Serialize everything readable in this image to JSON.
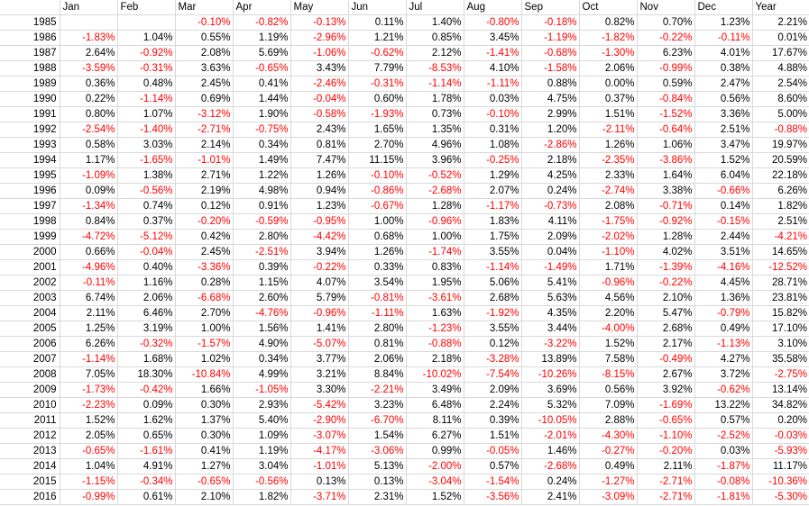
{
  "header": {
    "corner": "",
    "columns": [
      "Jan",
      "Feb",
      "Mar",
      "Apr",
      "May",
      "Jun",
      "Jul",
      "Aug",
      "Sep",
      "Oct",
      "Nov",
      "Dec",
      "Year"
    ]
  },
  "colors": {
    "negative": "#ff0000",
    "positive": "#000000",
    "gridline": "#d9d9d9"
  },
  "rows": [
    {
      "year": "1985",
      "cells": [
        "",
        "",
        "-0.10%",
        "-0.82%",
        "-0.13%",
        "0.11%",
        "1.40%",
        "-0.80%",
        "-0.18%",
        "0.82%",
        "0.70%",
        "1.23%",
        "2.21%"
      ]
    },
    {
      "year": "1986",
      "cells": [
        "-1.83%",
        "1.04%",
        "0.55%",
        "1.19%",
        "-2.96%",
        "1.21%",
        "0.85%",
        "3.45%",
        "-1.19%",
        "-1.82%",
        "-0.22%",
        "-0.11%",
        "0.01%"
      ]
    },
    {
      "year": "1987",
      "cells": [
        "2.64%",
        "-0.92%",
        "2.08%",
        "5.69%",
        "-1.06%",
        "-0.62%",
        "2.12%",
        "-1.41%",
        "-0.68%",
        "-1.30%",
        "6.23%",
        "4.01%",
        "17.67%"
      ]
    },
    {
      "year": "1988",
      "cells": [
        "-3.59%",
        "-0.31%",
        "3.63%",
        "-0.65%",
        "3.43%",
        "7.79%",
        "-8.53%",
        "4.10%",
        "-1.58%",
        "2.06%",
        "-0.99%",
        "0.38%",
        "4.88%"
      ]
    },
    {
      "year": "1989",
      "cells": [
        "0.36%",
        "0.48%",
        "2.45%",
        "0.41%",
        "-2.46%",
        "-0.31%",
        "-1.14%",
        "-1.11%",
        "0.88%",
        "0.00%",
        "0.59%",
        "2.47%",
        "2.54%"
      ]
    },
    {
      "year": "1990",
      "cells": [
        "0.22%",
        "-1.14%",
        "0.69%",
        "1.44%",
        "-0.04%",
        "0.60%",
        "1.78%",
        "0.03%",
        "4.75%",
        "0.37%",
        "-0.84%",
        "0.56%",
        "8.60%"
      ]
    },
    {
      "year": "1991",
      "cells": [
        "0.80%",
        "1.07%",
        "-3.12%",
        "1.90%",
        "-0.58%",
        "-1.93%",
        "0.73%",
        "-0.10%",
        "2.99%",
        "1.51%",
        "-1.52%",
        "3.36%",
        "5.00%"
      ]
    },
    {
      "year": "1992",
      "cells": [
        "-2.54%",
        "-1.40%",
        "-2.71%",
        "-0.75%",
        "2.43%",
        "1.65%",
        "1.35%",
        "0.31%",
        "1.20%",
        "-2.11%",
        "-0.64%",
        "2.51%",
        "-0.88%"
      ]
    },
    {
      "year": "1993",
      "cells": [
        "0.58%",
        "3.03%",
        "2.14%",
        "0.34%",
        "0.81%",
        "2.70%",
        "4.96%",
        "1.08%",
        "-2.86%",
        "1.26%",
        "1.06%",
        "3.47%",
        "19.97%"
      ]
    },
    {
      "year": "1994",
      "cells": [
        "1.17%",
        "-1.65%",
        "-1.01%",
        "1.49%",
        "7.47%",
        "11.15%",
        "3.96%",
        "-0.25%",
        "2.18%",
        "-2.35%",
        "-3.86%",
        "1.52%",
        "20.59%"
      ]
    },
    {
      "year": "1995",
      "cells": [
        "-1.09%",
        "1.38%",
        "2.71%",
        "1.22%",
        "1.26%",
        "-0.10%",
        "-0.52%",
        "1.29%",
        "4.25%",
        "2.33%",
        "1.64%",
        "6.04%",
        "22.18%"
      ]
    },
    {
      "year": "1996",
      "cells": [
        "0.09%",
        "-0.56%",
        "2.19%",
        "4.98%",
        "0.94%",
        "-0.86%",
        "-2.68%",
        "2.07%",
        "0.24%",
        "-2.74%",
        "3.38%",
        "-0.66%",
        "6.26%"
      ]
    },
    {
      "year": "1997",
      "cells": [
        "-1.34%",
        "0.74%",
        "0.12%",
        "0.91%",
        "1.23%",
        "-0.67%",
        "1.28%",
        "-1.17%",
        "-0.73%",
        "2.08%",
        "-0.71%",
        "0.14%",
        "1.82%"
      ]
    },
    {
      "year": "1998",
      "cells": [
        "0.84%",
        "0.37%",
        "-0.20%",
        "-0.59%",
        "-0.95%",
        "1.00%",
        "-0.96%",
        "1.83%",
        "4.11%",
        "-1.75%",
        "-0.92%",
        "-0.15%",
        "2.51%"
      ]
    },
    {
      "year": "1999",
      "cells": [
        "-4.72%",
        "-5.12%",
        "0.42%",
        "2.80%",
        "-4.42%",
        "0.68%",
        "1.00%",
        "1.75%",
        "2.09%",
        "-2.02%",
        "1.28%",
        "2.44%",
        "-4.21%"
      ]
    },
    {
      "year": "2000",
      "cells": [
        "0.66%",
        "-0.04%",
        "2.45%",
        "-2.51%",
        "3.94%",
        "1.26%",
        "-1.74%",
        "3.55%",
        "0.04%",
        "-1.10%",
        "4.02%",
        "3.51%",
        "14.65%"
      ]
    },
    {
      "year": "2001",
      "cells": [
        "-4.96%",
        "0.40%",
        "-3.36%",
        "0.39%",
        "-0.22%",
        "0.33%",
        "0.83%",
        "-1.14%",
        "-1.49%",
        "1.71%",
        "-1.39%",
        "-4.16%",
        "-12.52%"
      ]
    },
    {
      "year": "2002",
      "cells": [
        "-0.11%",
        "1.16%",
        "0.28%",
        "1.15%",
        "4.07%",
        "3.54%",
        "1.95%",
        "5.06%",
        "5.41%",
        "-0.96%",
        "-0.22%",
        "4.45%",
        "28.71%"
      ]
    },
    {
      "year": "2003",
      "cells": [
        "6.74%",
        "2.06%",
        "-6.68%",
        "2.60%",
        "5.79%",
        "-0.81%",
        "-3.61%",
        "2.68%",
        "5.63%",
        "4.56%",
        "2.10%",
        "1.36%",
        "23.81%"
      ]
    },
    {
      "year": "2004",
      "cells": [
        "2.11%",
        "6.46%",
        "2.70%",
        "-4.76%",
        "-0.96%",
        "-1.11%",
        "1.63%",
        "-1.92%",
        "4.35%",
        "2.20%",
        "5.47%",
        "-0.79%",
        "15.82%"
      ]
    },
    {
      "year": "2005",
      "cells": [
        "1.25%",
        "3.19%",
        "1.00%",
        "1.56%",
        "1.41%",
        "2.80%",
        "-1.23%",
        "3.55%",
        "3.44%",
        "-4.00%",
        "2.68%",
        "0.49%",
        "17.10%"
      ]
    },
    {
      "year": "2006",
      "cells": [
        "6.26%",
        "-0.32%",
        "-1.57%",
        "4.90%",
        "-5.07%",
        "0.81%",
        "-0.88%",
        "0.12%",
        "-3.22%",
        "1.52%",
        "2.17%",
        "-1.13%",
        "3.10%"
      ]
    },
    {
      "year": "2007",
      "cells": [
        "-1.14%",
        "1.68%",
        "1.02%",
        "0.34%",
        "3.77%",
        "2.06%",
        "2.18%",
        "-3.28%",
        "13.89%",
        "7.58%",
        "-0.49%",
        "4.27%",
        "35.58%"
      ]
    },
    {
      "year": "2008",
      "cells": [
        "7.05%",
        "18.30%",
        "-10.84%",
        "4.99%",
        "3.21%",
        "8.84%",
        "-10.02%",
        "-7.54%",
        "-10.26%",
        "-8.15%",
        "2.67%",
        "3.72%",
        "-2.75%"
      ]
    },
    {
      "year": "2009",
      "cells": [
        "-1.73%",
        "-0.42%",
        "1.66%",
        "-1.05%",
        "3.30%",
        "-2.21%",
        "3.49%",
        "2.09%",
        "3.69%",
        "0.56%",
        "3.92%",
        "-0.62%",
        "13.14%"
      ]
    },
    {
      "year": "2010",
      "cells": [
        "-2.23%",
        "0.09%",
        "0.30%",
        "2.93%",
        "-5.42%",
        "3.23%",
        "6.48%",
        "2.24%",
        "5.32%",
        "7.09%",
        "-1.69%",
        "13.22%",
        "34.82%"
      ]
    },
    {
      "year": "2011",
      "cells": [
        "1.52%",
        "1.62%",
        "1.37%",
        "5.40%",
        "-2.90%",
        "-6.70%",
        "8.11%",
        "0.39%",
        "-10.05%",
        "2.88%",
        "-0.65%",
        "0.57%",
        "0.20%"
      ]
    },
    {
      "year": "2012",
      "cells": [
        "2.05%",
        "0.65%",
        "0.30%",
        "1.09%",
        "-3.07%",
        "1.54%",
        "6.27%",
        "1.51%",
        "-2.01%",
        "-4.30%",
        "-1.10%",
        "-2.52%",
        "-0.03%"
      ]
    },
    {
      "year": "2013",
      "cells": [
        "-0.65%",
        "-1.61%",
        "0.41%",
        "1.19%",
        "-4.17%",
        "-3.06%",
        "0.99%",
        "-0.05%",
        "1.46%",
        "-0.27%",
        "-0.20%",
        "0.03%",
        "-5.93%"
      ]
    },
    {
      "year": "2014",
      "cells": [
        "1.04%",
        "4.91%",
        "1.27%",
        "3.04%",
        "-1.01%",
        "5.13%",
        "-2.00%",
        "0.57%",
        "-2.68%",
        "0.49%",
        "2.11%",
        "-1.87%",
        "11.17%"
      ]
    },
    {
      "year": "2015",
      "cells": [
        "-1.15%",
        "-0.34%",
        "-0.65%",
        "-0.56%",
        "0.13%",
        "0.13%",
        "-3.04%",
        "-1.54%",
        "0.24%",
        "-1.27%",
        "-2.71%",
        "-0.08%",
        "-10.36%"
      ]
    },
    {
      "year": "2016",
      "cells": [
        "-0.99%",
        "0.61%",
        "2.10%",
        "1.82%",
        "-3.71%",
        "2.31%",
        "1.52%",
        "-3.56%",
        "2.41%",
        "-3.09%",
        "-2.71%",
        "-1.81%",
        "-5.30%"
      ]
    }
  ]
}
